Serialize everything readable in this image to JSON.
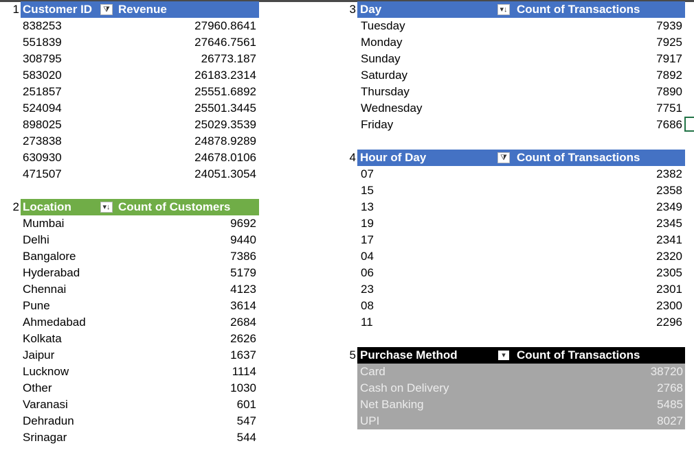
{
  "pivot1": {
    "number": "1",
    "header": {
      "col1": "Customer ID",
      "col2": "Revenue",
      "filter_icon": "filter-sort-icon",
      "color": "#4472c4"
    },
    "rows": [
      {
        "id": "838253",
        "value": "27960.8641"
      },
      {
        "id": "551839",
        "value": "27646.7561"
      },
      {
        "id": "308795",
        "value": "26773.187"
      },
      {
        "id": "583020",
        "value": "26183.2314"
      },
      {
        "id": "251857",
        "value": "25551.6892"
      },
      {
        "id": "524094",
        "value": "25501.3445"
      },
      {
        "id": "898025",
        "value": "25029.3539"
      },
      {
        "id": "273838",
        "value": "24878.9289"
      },
      {
        "id": "630930",
        "value": "24678.0106"
      },
      {
        "id": "471507",
        "value": "24051.3054"
      }
    ]
  },
  "pivot2": {
    "number": "2",
    "header": {
      "col1": "Location",
      "col2": "Count of Customers",
      "filter_icon": "sort-desc-icon",
      "color": "#70ad47"
    },
    "rows": [
      {
        "label": "Mumbai",
        "value": "9692"
      },
      {
        "label": "Delhi",
        "value": "9440"
      },
      {
        "label": "Bangalore",
        "value": "7386"
      },
      {
        "label": "Hyderabad",
        "value": "5179"
      },
      {
        "label": "Chennai",
        "value": "4123"
      },
      {
        "label": "Pune",
        "value": "3614"
      },
      {
        "label": "Ahmedabad",
        "value": "2684"
      },
      {
        "label": "Kolkata",
        "value": "2626"
      },
      {
        "label": "Jaipur",
        "value": "1637"
      },
      {
        "label": "Lucknow",
        "value": "1114"
      },
      {
        "label": "Other",
        "value": "1030"
      },
      {
        "label": "Varanasi",
        "value": "601"
      },
      {
        "label": "Dehradun",
        "value": "547"
      },
      {
        "label": "Srinagar",
        "value": "544"
      }
    ]
  },
  "pivot3": {
    "number": "3",
    "header": {
      "col1": "Day",
      "col2": "Count of Transactions",
      "filter_icon": "sort-desc-icon",
      "color": "#4472c4"
    },
    "rows": [
      {
        "label": "Tuesday",
        "value": "7939"
      },
      {
        "label": "Monday",
        "value": "7925"
      },
      {
        "label": "Sunday",
        "value": "7917"
      },
      {
        "label": "Saturday",
        "value": "7892"
      },
      {
        "label": "Thursday",
        "value": "7890"
      },
      {
        "label": "Wednesday",
        "value": "7751"
      },
      {
        "label": "Friday",
        "value": "7686"
      }
    ]
  },
  "pivot4": {
    "number": "4",
    "header": {
      "col1": "Hour of Day",
      "col2": "Count of Transactions",
      "filter_icon": "filter-sort-icon",
      "color": "#4472c4"
    },
    "rows": [
      {
        "label": "07",
        "value": "2382"
      },
      {
        "label": "15",
        "value": "2358"
      },
      {
        "label": "13",
        "value": "2349"
      },
      {
        "label": "19",
        "value": "2345"
      },
      {
        "label": "17",
        "value": "2341"
      },
      {
        "label": "04",
        "value": "2320"
      },
      {
        "label": "06",
        "value": "2305"
      },
      {
        "label": "23",
        "value": "2301"
      },
      {
        "label": "08",
        "value": "2300"
      },
      {
        "label": "11",
        "value": "2296"
      }
    ]
  },
  "pivot5": {
    "number": "5",
    "header": {
      "col1": "Purchase Method",
      "col2": "Count of Transactions",
      "filter_icon": "dropdown-arrow-icon",
      "color": "#000000"
    },
    "body_color": "#a6a6a6",
    "rows": [
      {
        "label": "Card",
        "value": "38720"
      },
      {
        "label": "Cash on Delivery",
        "value": "2768"
      },
      {
        "label": "Net Banking",
        "value": "5485"
      },
      {
        "label": "UPI",
        "value": "8027"
      }
    ]
  }
}
